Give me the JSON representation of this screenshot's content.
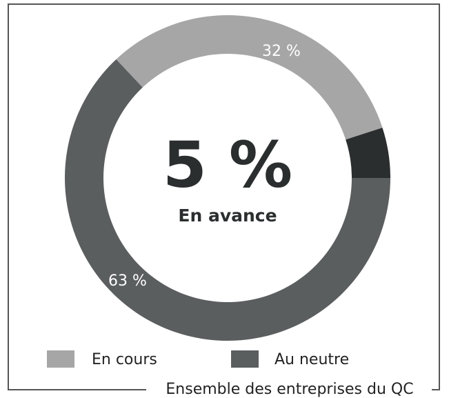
{
  "chart_data": {
    "type": "donut",
    "categories": [
      "En cours",
      "En avance",
      "Au neutre"
    ],
    "values": [
      32,
      5,
      63
    ],
    "value_labels": [
      "32 %",
      "5 %",
      "63 %"
    ],
    "colors": [
      "#a6a6a6",
      "#2b2e2f",
      "#5b5e5f"
    ],
    "center": 1,
    "caption": "Ensemble des entreprises du QC"
  }
}
